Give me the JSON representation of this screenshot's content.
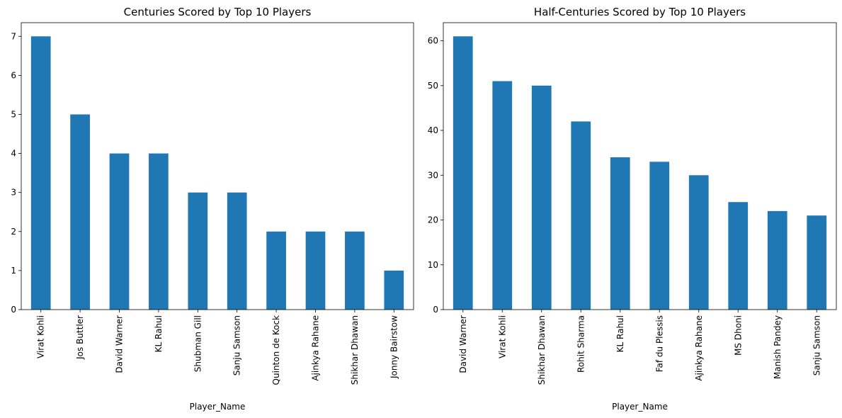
{
  "chart_data": [
    {
      "type": "bar",
      "title": "Centuries Scored by Top 10 Players",
      "xlabel": "Player_Name",
      "ylabel": "",
      "categories": [
        "Virat Kohli",
        "Jos Buttler",
        "David Warner",
        "KL Rahul",
        "Shubman Gill",
        "Sanju Samson",
        "Quinton de Kock",
        "Ajinkya Rahane",
        "Shikhar Dhawan",
        "Jonny Bairstow"
      ],
      "values": [
        7,
        5,
        4,
        4,
        3,
        3,
        2,
        2,
        2,
        1
      ],
      "ylim": [
        0,
        7.35
      ],
      "yticks": [
        0,
        1,
        2,
        3,
        4,
        5,
        6,
        7
      ],
      "color": "#1f77b4",
      "grid": false
    },
    {
      "type": "bar",
      "title": "Half-Centuries Scored by Top 10 Players",
      "xlabel": "Player_Name",
      "ylabel": "",
      "categories": [
        "David Warner",
        "Virat Kohli",
        "Shikhar Dhawan",
        "Rohit Sharma",
        "KL Rahul",
        "Faf du Plessis",
        "Ajinkya Rahane",
        "MS Dhoni",
        "Manish Pandey",
        "Sanju Samson"
      ],
      "values": [
        61,
        51,
        50,
        42,
        34,
        33,
        30,
        24,
        22,
        21
      ],
      "ylim": [
        0,
        64.05
      ],
      "yticks": [
        0,
        10,
        20,
        30,
        40,
        50,
        60
      ],
      "color": "#1f77b4",
      "grid": false
    }
  ]
}
